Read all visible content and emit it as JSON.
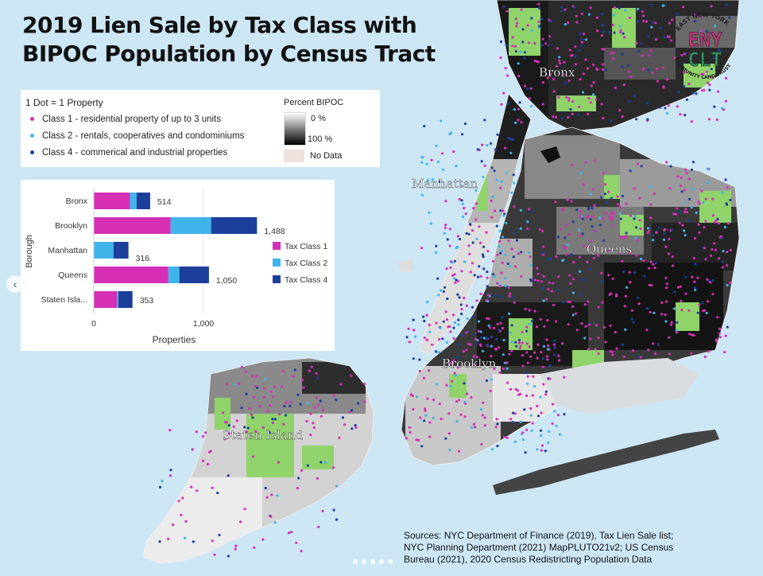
{
  "title": {
    "line1": "2019 Lien Sale by Tax Class with",
    "line2": "BIPOC Population by Census Tract"
  },
  "legend": {
    "dot_heading": "1 Dot = 1 Property",
    "items": [
      {
        "label": "Class 1 - residential property of up to 3 units",
        "color": "#d62fb5"
      },
      {
        "label": "Class 2 - rentals, cooperatives and condominiums",
        "color": "#3fb4ea"
      },
      {
        "label": "Class 4 - commerical and industrial properties",
        "color": "#1c3f9c"
      }
    ],
    "percent_heading": "Percent BIPOC",
    "pct_low": "0 %",
    "pct_high": "100 %",
    "no_data": "No Data"
  },
  "chart_data": {
    "type": "bar",
    "orientation": "horizontal",
    "stacked": true,
    "ylabel": "Borough",
    "xlabel": "Properties",
    "categories": [
      "Bronx",
      "Brooklyn",
      "Manhattan",
      "Queens",
      "Staten Isla..."
    ],
    "series": [
      {
        "name": "Tax Class 1",
        "color": "#d62fb5",
        "values": [
          330,
          700,
          0,
          680,
          210
        ]
      },
      {
        "name": "Tax Class 2",
        "color": "#3fb4ea",
        "values": [
          60,
          370,
          180,
          100,
          15
        ]
      },
      {
        "name": "Tax Class 4",
        "color": "#1c3f9c",
        "values": [
          124,
          418,
          136,
          270,
          128
        ]
      }
    ],
    "totals": [
      "514",
      "1,488",
      "316",
      "1,050",
      "353"
    ],
    "xlim": [
      0,
      1500
    ],
    "xticks": [
      {
        "value": 0,
        "label": "0"
      },
      {
        "value": 1000,
        "label": "1,000"
      }
    ],
    "legend_position": "right"
  },
  "map": {
    "labels": [
      "Bronx",
      "Manhattan",
      "Queens",
      "Brooklyn",
      "Staten Island"
    ],
    "park_color": "#8fd36a",
    "water_color": "#cde6f4"
  },
  "logo": {
    "top_text": "EAST NEW YORK",
    "bottom_text": "COMMUNITY LAND TRUST",
    "line1": "ENY",
    "line2": "CLT"
  },
  "sources": {
    "line1": "Sources: NYC Department of Finance (2019), Tax Lien Sale list;",
    "line2": "NYC Planning Department (2021) MapPLUTO21v2; US Census",
    "line3": "Bureau (2021), 2020 Census Redistricting Population Data"
  }
}
